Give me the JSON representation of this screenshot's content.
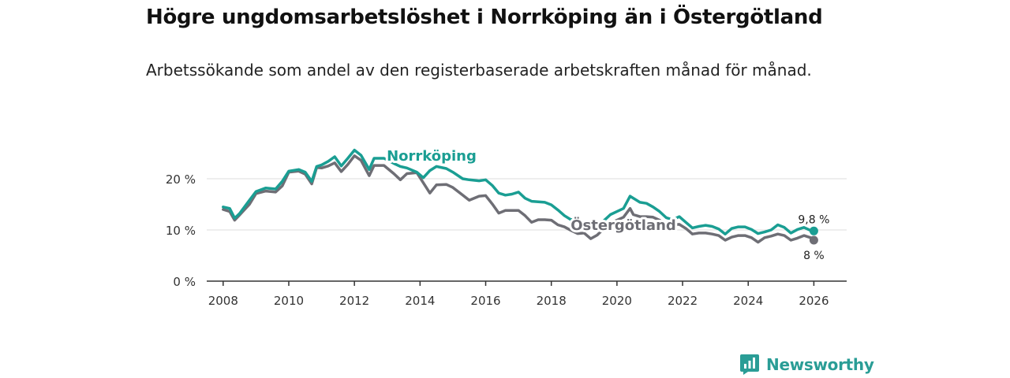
{
  "colors": {
    "norrkoping": "#1a9e93",
    "ostergotland": "#6e6e75",
    "grid": "#dddddd",
    "axis": "#333333",
    "brand": "#2a9d96"
  },
  "chart_data": {
    "type": "line",
    "title": "Högre ungdomsarbetslöshet i Norrköping än i Östergötland",
    "subtitle": "Arbetssökande som andel av den registerbaserade arbetskraften månad för månad.",
    "xlabel": "",
    "ylabel": "",
    "xlim": [
      2007.5,
      2027.0
    ],
    "ylim": [
      0,
      20
    ],
    "x_ticks": [
      2008,
      2010,
      2012,
      2014,
      2016,
      2018,
      2020,
      2022,
      2024,
      2026
    ],
    "x_tick_labels": [
      "2008",
      "2010",
      "2012",
      "2014",
      "2016",
      "2018",
      "2020",
      "2022",
      "2024",
      "2026"
    ],
    "y_ticks": [
      0,
      10,
      20
    ],
    "y_tick_labels": [
      "0 %",
      "10 %",
      "20 %"
    ],
    "x": [
      2008.0,
      2008.2,
      2008.35,
      2008.5,
      2008.8,
      2009.0,
      2009.3,
      2009.6,
      2009.8,
      2010.0,
      2010.3,
      2010.5,
      2010.7,
      2010.85,
      2011.0,
      2011.2,
      2011.4,
      2011.6,
      2011.8,
      2012.0,
      2012.2,
      2012.45,
      2012.6,
      2012.9,
      2013.2,
      2013.4,
      2013.6,
      2013.9,
      2014.1,
      2014.3,
      2014.5,
      2014.8,
      2015.0,
      2015.3,
      2015.5,
      2015.8,
      2016.0,
      2016.2,
      2016.4,
      2016.6,
      2016.8,
      2017.0,
      2017.2,
      2017.4,
      2017.6,
      2017.8,
      2018.0,
      2018.2,
      2018.4,
      2018.6,
      2018.8,
      2019.0,
      2019.2,
      2019.4,
      2019.6,
      2019.8,
      2020.0,
      2020.2,
      2020.4,
      2020.5,
      2020.7,
      2020.9,
      2021.1,
      2021.3,
      2021.5,
      2021.7,
      2021.9,
      2022.1,
      2022.3,
      2022.5,
      2022.7,
      2022.9,
      2023.1,
      2023.3,
      2023.5,
      2023.7,
      2023.9,
      2024.1,
      2024.3,
      2024.5,
      2024.7,
      2024.9,
      2025.1,
      2025.3,
      2025.5,
      2025.7,
      2025.9,
      2026.0
    ],
    "series": [
      {
        "name": "Norrköping",
        "label": "Norrköping",
        "end_label": "9,8 %",
        "values": [
          14.5,
          14.2,
          12.3,
          13.2,
          15.8,
          17.5,
          18.2,
          18.0,
          19.5,
          21.5,
          21.8,
          21.3,
          19.5,
          22.4,
          22.7,
          23.4,
          24.3,
          22.5,
          24.0,
          25.6,
          24.6,
          21.8,
          24.0,
          24.0,
          23.0,
          22.4,
          22.1,
          21.3,
          20.2,
          21.6,
          22.4,
          22.0,
          21.3,
          20.0,
          19.8,
          19.6,
          19.8,
          18.7,
          17.2,
          16.8,
          17.0,
          17.4,
          16.2,
          15.6,
          15.5,
          15.4,
          14.9,
          13.9,
          12.8,
          12.0,
          12.2,
          11.0,
          10.2,
          10.6,
          11.8,
          13.0,
          13.6,
          14.2,
          16.6,
          16.2,
          15.4,
          15.2,
          14.5,
          13.6,
          12.4,
          12.0,
          12.6,
          11.5,
          10.4,
          10.7,
          10.9,
          10.7,
          10.2,
          9.2,
          10.3,
          10.6,
          10.6,
          10.1,
          9.3,
          9.6,
          10.0,
          11.0,
          10.5,
          9.4,
          10.1,
          10.5,
          9.9,
          9.8
        ]
      },
      {
        "name": "Östergötland",
        "label": "Östergötland",
        "end_label": "8 %",
        "values": [
          14.0,
          13.6,
          11.9,
          12.9,
          15.0,
          17.1,
          17.6,
          17.4,
          18.6,
          21.3,
          21.5,
          20.9,
          19.0,
          22.2,
          22.1,
          22.5,
          23.1,
          21.4,
          22.8,
          24.5,
          23.6,
          20.6,
          22.6,
          22.6,
          21.0,
          19.8,
          21.0,
          21.2,
          19.2,
          17.2,
          18.8,
          18.9,
          18.3,
          16.8,
          15.8,
          16.6,
          16.7,
          15.1,
          13.3,
          13.8,
          13.8,
          13.8,
          12.8,
          11.5,
          12.0,
          12.0,
          11.9,
          11.0,
          10.6,
          9.9,
          9.3,
          9.4,
          8.3,
          9.0,
          10.3,
          11.4,
          11.9,
          12.5,
          14.2,
          13.0,
          12.6,
          12.6,
          12.5,
          11.9,
          11.1,
          11.0,
          11.1,
          10.3,
          9.2,
          9.4,
          9.4,
          9.2,
          8.9,
          8.0,
          8.6,
          8.9,
          8.9,
          8.5,
          7.6,
          8.5,
          8.8,
          9.2,
          8.9,
          8.0,
          8.4,
          8.9,
          8.5,
          8.0
        ]
      }
    ],
    "legend": "inline labels on lines"
  },
  "branding": {
    "name": "Newsworthy",
    "icon": "newsworthy-logo-icon"
  }
}
